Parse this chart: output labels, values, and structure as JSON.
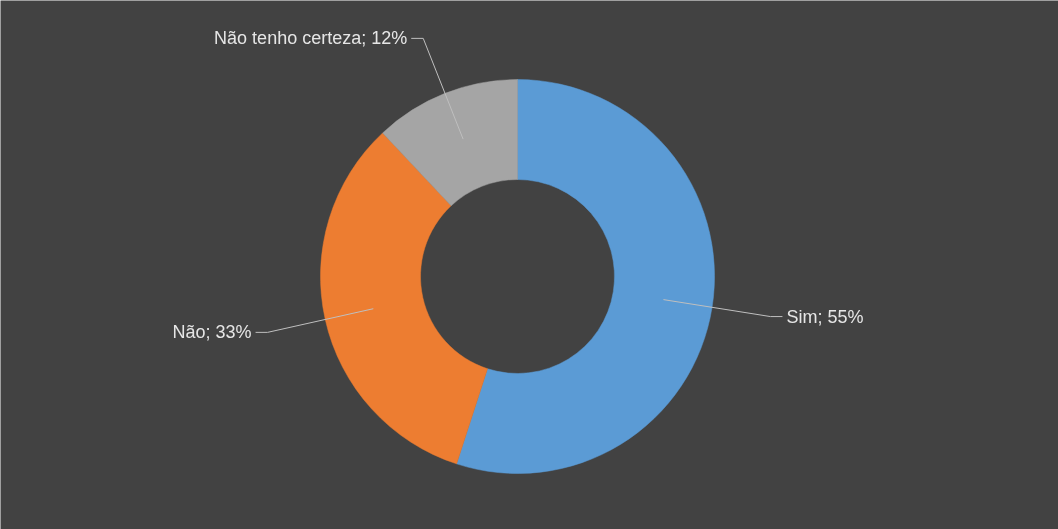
{
  "chart_data": {
    "type": "donut",
    "categories": [
      "Sim",
      "Não",
      "Não tenho certeza"
    ],
    "values": [
      55,
      33,
      12
    ],
    "colors": [
      "#5b9bd5",
      "#ed7d31",
      "#a5a5a5"
    ],
    "value_labels": [
      "55%",
      "33%",
      "12%"
    ],
    "legend": false
  }
}
